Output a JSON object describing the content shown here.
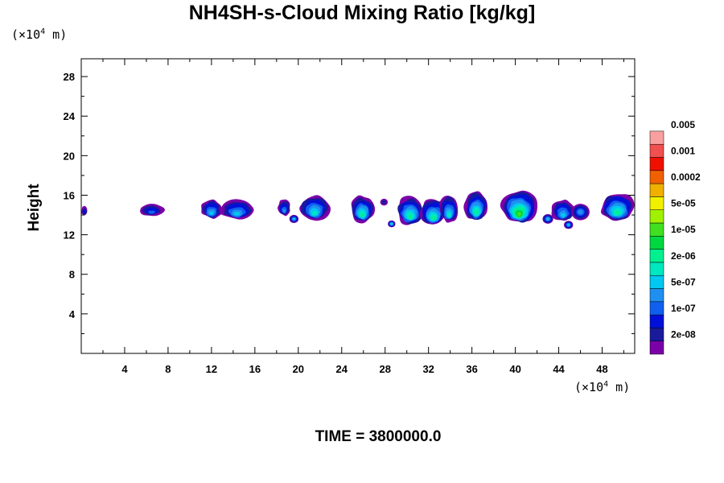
{
  "chart_data": {
    "type": "heatmap",
    "title": "NH4SH-s-Cloud Mixing Ratio [kg/kg]",
    "ylabel": "Height",
    "xlabel": "",
    "x_unit_prefix": "(×10",
    "x_unit_exp": "4",
    "x_unit_suffix": " m)",
    "y_unit_prefix": "(×10",
    "y_unit_exp": "4",
    "y_unit_suffix": " m)",
    "xlim": [
      0,
      51
    ],
    "ylim": [
      0,
      29.8
    ],
    "x_ticks": [
      4,
      8,
      12,
      16,
      20,
      24,
      28,
      32,
      36,
      40,
      44,
      48
    ],
    "y_ticks": [
      4,
      8,
      12,
      16,
      20,
      24,
      28
    ],
    "time_label": "TIME = 3800000.0",
    "colorbar": {
      "colors": [
        "#7a00a8",
        "#1a1a9c",
        "#0010d8",
        "#1060f0",
        "#2090f0",
        "#00c8f0",
        "#00e8c0",
        "#00f090",
        "#00d840",
        "#40e020",
        "#a0f000",
        "#f0f000",
        "#f0b000",
        "#f06000",
        "#f01000",
        "#f05050",
        "#f8a0a0"
      ],
      "labels": [
        "2e-08",
        "1e-07",
        "5e-07",
        "2e-06",
        "1e-05",
        "5e-05",
        "0.0002",
        "0.001",
        "0.005"
      ]
    },
    "clouds": [
      {
        "x0": 0.0,
        "x1": 0.6,
        "base": 13.9,
        "top": 14.9,
        "peak": 2
      },
      {
        "x0": 5.3,
        "x1": 7.7,
        "base": 13.9,
        "top": 15.1,
        "peak": 3
      },
      {
        "x0": 11.0,
        "x1": 13.0,
        "base": 13.6,
        "top": 15.6,
        "peak": 5
      },
      {
        "x0": 12.8,
        "x1": 15.9,
        "base": 13.5,
        "top": 15.6,
        "peak": 5
      },
      {
        "x0": 18.1,
        "x1": 19.3,
        "base": 13.9,
        "top": 15.6,
        "peak": 4
      },
      {
        "x0": 20.1,
        "x1": 22.9,
        "base": 13.4,
        "top": 16.1,
        "peak": 6
      },
      {
        "x0": 24.8,
        "x1": 27.0,
        "base": 13.2,
        "top": 16.0,
        "peak": 7
      },
      {
        "x0": 29.0,
        "x1": 31.6,
        "base": 13.0,
        "top": 15.9,
        "peak": 7
      },
      {
        "x0": 31.2,
        "x1": 33.7,
        "base": 12.9,
        "top": 15.7,
        "peak": 7
      },
      {
        "x0": 33.0,
        "x1": 34.8,
        "base": 13.2,
        "top": 16.0,
        "peak": 6
      },
      {
        "x0": 35.3,
        "x1": 37.5,
        "base": 13.4,
        "top": 16.4,
        "peak": 7
      },
      {
        "x0": 38.7,
        "x1": 42.0,
        "base": 13.1,
        "top": 16.6,
        "peak": 9
      },
      {
        "x0": 43.3,
        "x1": 45.5,
        "base": 13.3,
        "top": 15.6,
        "peak": 5
      },
      {
        "x0": 47.8,
        "x1": 51.0,
        "base": 13.4,
        "top": 16.3,
        "peak": 7
      }
    ],
    "puffs": [
      {
        "x": 19.6,
        "y": 13.6,
        "r": 0.3,
        "peak": 5
      },
      {
        "x": 27.9,
        "y": 15.3,
        "r": 0.25,
        "peak": 1
      },
      {
        "x": 28.6,
        "y": 13.1,
        "r": 0.25,
        "peak": 6
      },
      {
        "x": 43.0,
        "y": 13.6,
        "r": 0.35,
        "peak": 5
      },
      {
        "x": 44.9,
        "y": 13.0,
        "r": 0.3,
        "peak": 5
      },
      {
        "x": 46.0,
        "y": 14.3,
        "r": 0.6,
        "peak": 4
      }
    ]
  }
}
